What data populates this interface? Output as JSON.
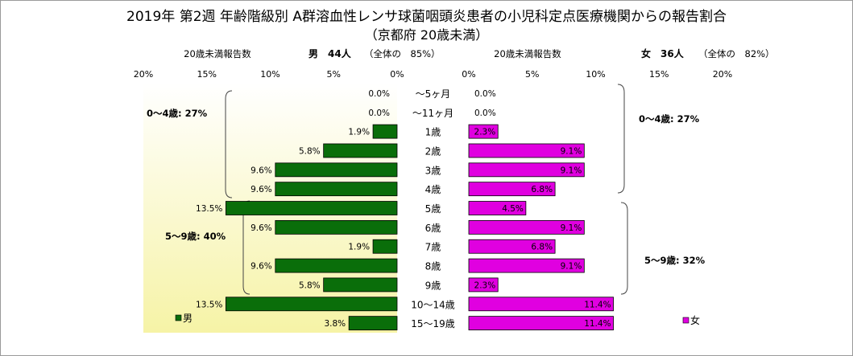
{
  "title": "2019年 第2週 年齢階級別 A群溶血性レンサ球菌咽頭炎患者の小児科定点医療機関からの報告割合",
  "subtitle": "（京都府 20歳未満）",
  "male_header": {
    "reports_label": "20歳未満報告数",
    "count": "男　44人",
    "ratio": "（全体の　85%）"
  },
  "female_header": {
    "reports_label": "20歳未満報告数",
    "count": "女　36人",
    "ratio": "（全体の　82%）"
  },
  "male_group_labels": [
    "0～4歳: 27%",
    "5～9歳: 40%"
  ],
  "female_group_labels": [
    "0～4歳: 27%",
    "5～9歳: 32%"
  ],
  "colors": {
    "male": "#0a6e0a",
    "female": "#e000e0",
    "male_bg_top": "#ffffff",
    "male_bg_bottom": "#f6f3a6"
  },
  "chart_data": {
    "type": "bar",
    "orientation": "horizontal-population-pyramid",
    "categories": [
      "～5ヶ月",
      "～11ヶ月",
      "1歳",
      "2歳",
      "3歳",
      "4歳",
      "5歳",
      "6歳",
      "7歳",
      "8歳",
      "9歳",
      "10～14歳",
      "15～19歳"
    ],
    "series": [
      {
        "name": "男",
        "values": [
          0.0,
          0.0,
          1.9,
          5.8,
          9.6,
          9.6,
          13.5,
          9.6,
          1.9,
          9.6,
          5.8,
          13.5,
          3.8
        ]
      },
      {
        "name": "女",
        "values": [
          0.0,
          0.0,
          2.3,
          9.1,
          9.1,
          6.8,
          4.5,
          9.1,
          6.8,
          9.1,
          2.3,
          11.4,
          11.4
        ]
      }
    ],
    "data_labels": {
      "male": [
        "0.0%",
        "0.0%",
        "1.9%",
        "5.8%",
        "9.6%",
        "9.6%",
        "13.5%",
        "9.6%",
        "1.9%",
        "9.6%",
        "5.8%",
        "13.5%",
        "3.8%"
      ],
      "female": [
        "0.0%",
        "0.0%",
        "2.3%",
        "9.1%",
        "9.1%",
        "6.8%",
        "4.5%",
        "9.1%",
        "6.8%",
        "9.1%",
        "2.3%",
        "11.4%",
        "11.4%"
      ]
    },
    "male_ticks": [
      "20%",
      "15%",
      "10%",
      "5%",
      "0%"
    ],
    "female_ticks": [
      "0%",
      "5%",
      "10%",
      "15%",
      "20%"
    ],
    "xlim": [
      0,
      20
    ],
    "unit": "%",
    "legend": {
      "male": "男",
      "female": "女"
    },
    "legend_position": "bottom-left / bottom-right"
  }
}
